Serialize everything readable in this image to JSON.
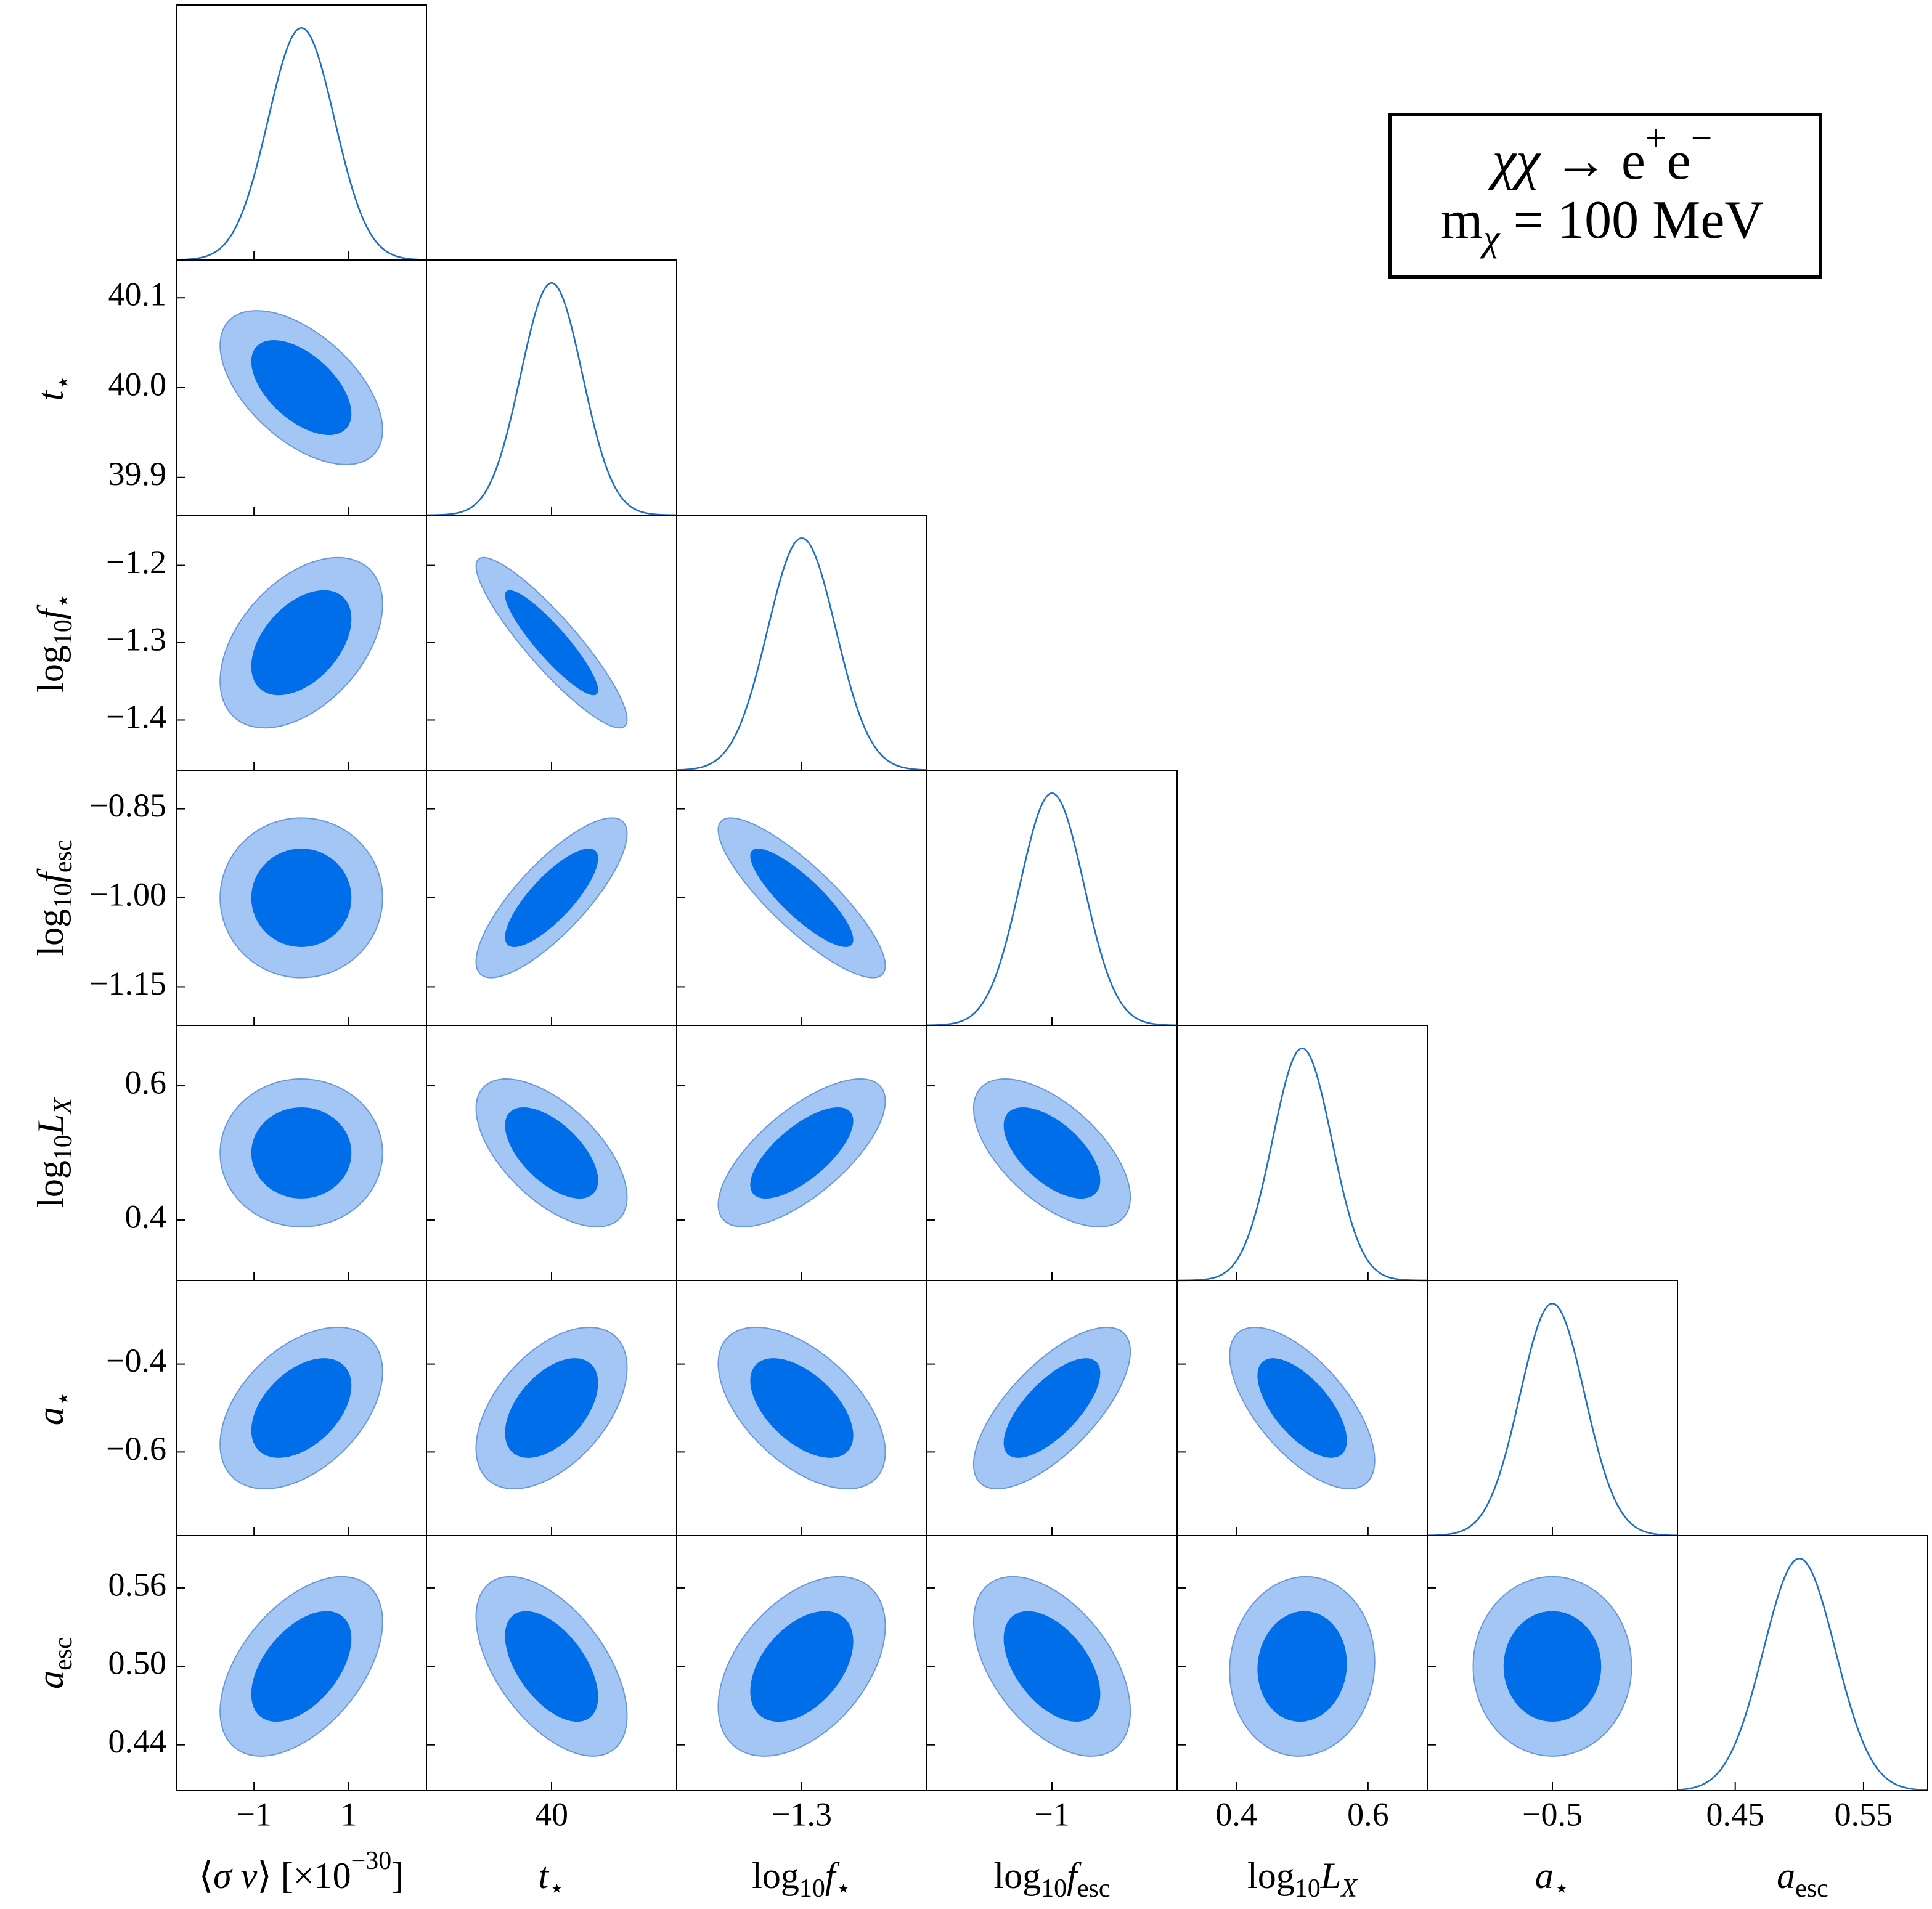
{
  "chart_data": {
    "type": "corner",
    "colors": {
      "line": "#1f6fc4",
      "outer": "#a3c6f4",
      "inner": "#006ee8",
      "edge": "#6b99d8",
      "frame": "#000000"
    },
    "levels": [
      0.68,
      0.95
    ],
    "annotation": [
      [
        {
          "text": "χχ",
          "italic": true
        },
        {
          "text": " → e"
        },
        {
          "text": "+",
          "sup": true
        },
        {
          "text": "e"
        },
        {
          "text": "−",
          "sup": true
        }
      ],
      [
        {
          "text": "m"
        },
        {
          "text": "χ",
          "italic": true,
          "sub": true
        },
        {
          "text": " = 100 MeV"
        }
      ]
    ],
    "params": [
      {
        "label": [
          {
            "text": "⟨"
          },
          {
            "text": "σ v",
            "italic": true
          },
          {
            "text": "⟩ [×10"
          },
          {
            "text": "−30",
            "sup": true
          },
          {
            "text": "]"
          }
        ],
        "lim": [
          -2.64,
          2.64
        ],
        "mean": 0,
        "sd": 0.7,
        "xticks": [
          {
            "value": -1,
            "label": "−1"
          },
          1
        ]
      },
      {
        "label": [
          {
            "text": "t",
            "italic": true
          },
          {
            "text": "⋆",
            "sub": true
          }
        ],
        "lim": [
          39.858,
          40.142
        ],
        "mean": 40,
        "sd": 0.035,
        "xticks": [
          40
        ],
        "yticks": [
          40.1,
          {
            "value": 40,
            "label": "40.0"
          },
          39.9
        ]
      },
      {
        "label": [
          {
            "text": "log"
          },
          {
            "text": "10",
            "sub": true
          },
          {
            "text": "f",
            "italic": true
          },
          {
            "text": "⋆",
            "sub": true
          }
        ],
        "lim": [
          -1.465,
          -1.135
        ],
        "mean": -1.3,
        "sd": 0.045,
        "xticks": [
          {
            "value": -1.3,
            "label": "−1.3"
          }
        ],
        "yticks": [
          {
            "value": -1.2,
            "label": "−1.2"
          },
          {
            "value": -1.3,
            "label": "−1.3"
          },
          {
            "value": -1.4,
            "label": "−1.4"
          }
        ]
      },
      {
        "label": [
          {
            "text": "log"
          },
          {
            "text": "10",
            "sub": true
          },
          {
            "text": "f",
            "italic": true
          },
          {
            "text": "esc",
            "sub": true
          }
        ],
        "lim": [
          -1.215,
          -0.785
        ],
        "mean": -1,
        "sd": 0.055,
        "xticks": [
          {
            "value": -1,
            "label": "−1"
          }
        ],
        "yticks": [
          {
            "value": -0.85,
            "label": "−0.85"
          },
          {
            "value": -1,
            "label": "−1.00"
          },
          {
            "value": -1.15,
            "label": "−1.15"
          }
        ]
      },
      {
        "label": [
          {
            "text": "log"
          },
          {
            "text": "10",
            "sub": true
          },
          {
            "text": "L",
            "italic": true
          },
          {
            "text": "X",
            "italic": true,
            "sub": true
          }
        ],
        "lim": [
          0.31,
          0.69
        ],
        "mean": 0.5,
        "sd": 0.045,
        "xticks": [
          0.4,
          0.6
        ],
        "yticks": [
          0.6,
          0.4
        ]
      },
      {
        "label": [
          {
            "text": "a",
            "italic": true
          },
          {
            "text": "⋆",
            "sub": true
          }
        ],
        "lim": [
          -0.79,
          -0.21
        ],
        "mean": -0.5,
        "sd": 0.075,
        "xticks": [
          {
            "value": -0.5,
            "label": "−0.5"
          }
        ],
        "yticks": [
          {
            "value": -0.4,
            "label": "−0.4"
          },
          {
            "value": -0.6,
            "label": "−0.6"
          }
        ]
      },
      {
        "label": [
          {
            "text": "a",
            "italic": true
          },
          {
            "text": "esc",
            "sub": true
          }
        ],
        "lim": [
          0.405,
          0.6
        ],
        "mean": 0.5,
        "sd": 0.028,
        "xticks": [
          0.45,
          0.55
        ],
        "yticks": [
          0.56,
          {
            "value": 0.5,
            "label": "0.50"
          },
          0.44
        ]
      }
    ],
    "correlations": [
      [],
      [
        -0.55
      ],
      [
        0.45,
        -0.9
      ],
      [
        0,
        0.8,
        -0.85
      ],
      [
        0,
        -0.6,
        0.7,
        -0.6
      ],
      [
        0.45,
        0.5,
        -0.55,
        0.7,
        -0.65
      ],
      [
        0.5,
        -0.55,
        0.45,
        -0.5,
        0.05,
        0
      ]
    ]
  }
}
